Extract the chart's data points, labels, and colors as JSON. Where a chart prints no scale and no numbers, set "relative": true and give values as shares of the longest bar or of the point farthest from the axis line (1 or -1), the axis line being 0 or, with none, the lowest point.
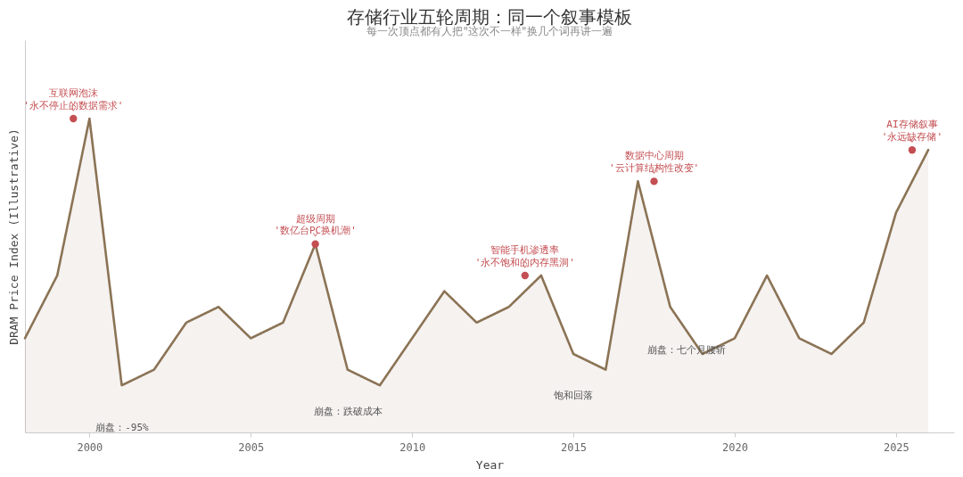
{
  "chart_data": {
    "type": "area",
    "title": "存储行业五轮周期：同一个叙事模板",
    "subtitle": "每一次顶点都有人把\"这次不一样\"换几个词再讲一遍",
    "xlabel": "Year",
    "ylabel": "DRAM Price Index (Illustrative)",
    "relative": true,
    "x": [
      1998,
      1999,
      2000,
      2001,
      2002,
      2003,
      2004,
      2005,
      2006,
      2007,
      2008,
      2009,
      2010,
      2011,
      2012,
      2013,
      2014,
      2015,
      2016,
      2017,
      2018,
      2019,
      2020,
      2021,
      2022,
      2023,
      2024,
      2025,
      2026
    ],
    "xlim": [
      1998,
      2026.8
    ],
    "xticks": [
      2000,
      2005,
      2010,
      2015,
      2020,
      2025
    ],
    "grid": false,
    "tick_labels": "x",
    "series": [
      {
        "color": "#8b7355",
        "values": [
          0.3,
          0.5,
          1.0,
          0.15,
          0.2,
          0.35,
          0.4,
          0.3,
          0.35,
          0.6,
          0.2,
          0.15,
          0.3,
          0.45,
          0.35,
          0.4,
          0.5,
          0.25,
          0.2,
          0.8,
          0.4,
          0.25,
          0.3,
          0.5,
          0.3,
          0.25,
          0.35,
          0.7,
          0.9
        ]
      },
      {
        "type": "scatter",
        "color": "#c44e52",
        "marker": "circle",
        "x": [
          1999.5,
          2007,
          2013.5,
          2017.5,
          2025.5
        ],
        "values": [
          1.0,
          0.6,
          0.5,
          0.8,
          0.9
        ]
      }
    ],
    "annotations": [
      {
        "text": "互联网泡沫\n'永不停止的数据需求'",
        "x": 1999.5,
        "y": 1.0
      },
      {
        "text": "超级周期\n'数亿台PC换机潮'",
        "x": 2007,
        "y": 0.6
      },
      {
        "text": "智能手机渗透率\n'永不饱和的内存黑洞'",
        "x": 2013.5,
        "y": 0.5
      },
      {
        "text": "数据中心周期\n'云计算结构性改变'",
        "x": 2017.5,
        "y": 0.8
      },
      {
        "text": "AI存储叙事\n'永远缺存储'",
        "x": 2025.5,
        "y": 0.9
      },
      "崩盘：-95%",
      "崩盘：跌破成本",
      "饱和回落",
      "崩盘：七个月腰斩"
    ]
  }
}
